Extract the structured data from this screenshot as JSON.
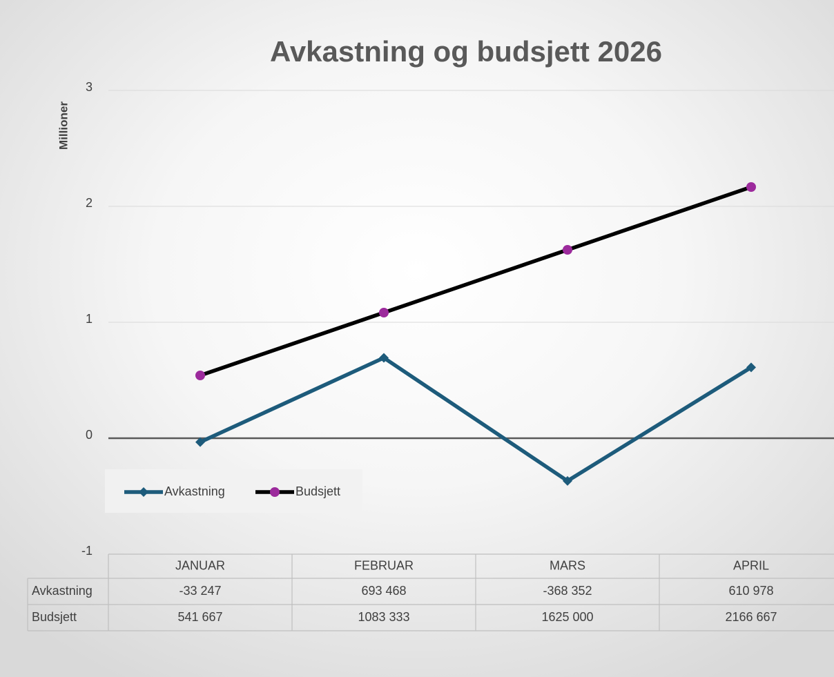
{
  "chart_data": {
    "type": "line",
    "title": "Avkastning og budsjett 2026",
    "y_label": "Millioner",
    "categories": [
      "JANUAR",
      "FEBRUAR",
      "MARS",
      "APRIL"
    ],
    "series": [
      {
        "name": "Avkastning",
        "color": "#1d5b7b",
        "marker": "diamond",
        "marker_color": "#1d5b7b",
        "values": [
          -0.033247,
          0.693468,
          -0.368352,
          0.610978
        ],
        "value_labels": [
          "-33 247",
          "693 468",
          "-368 352",
          "610 978"
        ]
      },
      {
        "name": "Budsjett",
        "color": "#000000",
        "marker": "circle",
        "marker_color": "#9c2a9c",
        "values": [
          0.541667,
          1.083333,
          1.625,
          2.166667
        ],
        "value_labels": [
          "541 667",
          "1083 333",
          "1625 000",
          "2166 667"
        ]
      }
    ],
    "ylim": [
      -1,
      3
    ],
    "yticks": [
      -1,
      0,
      1,
      2,
      3
    ],
    "grid": true,
    "legend": "lower-left",
    "data_table": true
  }
}
